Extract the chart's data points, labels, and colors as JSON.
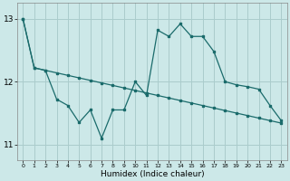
{
  "xlabel": "Humidex (Indice chaleur)",
  "background_color": "#cce8e8",
  "grid_color": "#aacccc",
  "line_color": "#1a6b6b",
  "xlim": [
    -0.5,
    23.5
  ],
  "ylim": [
    10.75,
    13.25
  ],
  "yticks": [
    11,
    12,
    13
  ],
  "xticks": [
    0,
    1,
    2,
    3,
    4,
    5,
    6,
    7,
    8,
    9,
    10,
    11,
    12,
    13,
    14,
    15,
    16,
    17,
    18,
    19,
    20,
    21,
    22,
    23
  ],
  "series1_x": [
    0,
    1,
    2,
    3,
    4,
    5,
    6,
    7,
    8,
    9,
    10,
    11,
    12,
    13,
    14,
    15,
    16,
    17,
    18,
    19,
    20,
    21,
    22,
    23
  ],
  "series1_y": [
    13.0,
    12.22,
    12.18,
    12.14,
    12.1,
    12.06,
    12.02,
    11.98,
    11.94,
    11.9,
    11.86,
    11.82,
    11.78,
    11.74,
    11.7,
    11.66,
    11.62,
    11.58,
    11.54,
    11.5,
    11.46,
    11.42,
    11.38,
    11.34
  ],
  "series2_x": [
    0,
    1,
    2,
    3,
    4,
    5,
    6,
    7,
    8,
    9,
    10,
    11,
    12,
    13,
    14,
    15,
    16,
    17,
    18,
    19,
    20,
    21,
    22,
    23
  ],
  "series2_y": [
    13.0,
    12.22,
    12.18,
    11.72,
    11.62,
    11.35,
    11.55,
    11.1,
    11.55,
    11.55,
    12.0,
    11.78,
    12.82,
    12.72,
    12.92,
    12.72,
    12.72,
    12.48,
    12.0,
    11.95,
    11.92,
    11.88,
    11.62,
    11.38
  ]
}
